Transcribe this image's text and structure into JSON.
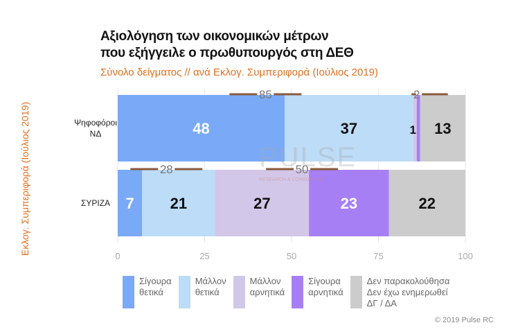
{
  "chart_data": {
    "type": "bar",
    "orientation": "horizontal",
    "stacked": true,
    "title": [
      "Αξιολόγηση των οικονομικών μέτρων",
      "που εξήγγειλε ο πρωθυπουργός στη ΔΕΘ"
    ],
    "subtitle": "Σύνολο δείγματος // ανά Εκλογ. Συμπεριφορά (Ιούλιος 2019)",
    "ylabel": "Εκλογ. Συμπεριφορά (Ιούλιος 2019)",
    "xlim": [
      0,
      100
    ],
    "xticks": [
      0,
      25,
      50,
      75,
      100
    ],
    "categories": [
      "Ψηφοφόροι\nΝΔ",
      "ΣΥΡΙΖΑ"
    ],
    "series": [
      {
        "name": "Σίγουρα θετικά",
        "color": "#7aa9f7",
        "label_color": "#ffffff",
        "values": [
          48,
          7
        ]
      },
      {
        "name": "Μάλλον θετικά",
        "color": "#bcdcf7",
        "label_color": "#111111",
        "values": [
          37,
          21
        ]
      },
      {
        "name": "Μάλλον αρνητικά",
        "color": "#d2c7e8",
        "label_color": "#111111",
        "values": [
          1,
          27
        ]
      },
      {
        "name": "Σίγουρα αρνητικά",
        "color": "#a77ff5",
        "label_color": "#ffffff",
        "values": [
          1,
          23
        ]
      },
      {
        "name": "Δεν παρακολούθησα Δεν έχω ενημερωθεί ΔΓ / ΔΑ",
        "color": "#cccccc",
        "label_color": "#111111",
        "values": [
          13,
          22
        ]
      }
    ],
    "legend_lines": [
      [
        "Σίγουρα",
        "θετικά"
      ],
      [
        "Μάλλον",
        "θετικά"
      ],
      [
        "Μάλλον",
        "αρνητικά"
      ],
      [
        "Σίγουρα",
        "αρνητικά"
      ],
      [
        "Δεν παρακολούθησα",
        "Δεν έχω ενημερωθεί",
        "ΔΓ / ΔΑ"
      ]
    ],
    "annotations": [
      {
        "row": 0,
        "from": 0,
        "to": 85,
        "text": "85"
      },
      {
        "row": 0,
        "from": 85,
        "to": 87,
        "text": "2"
      },
      {
        "row": 1,
        "from": 0,
        "to": 28,
        "text": "28"
      },
      {
        "row": 1,
        "from": 28,
        "to": 78,
        "text": "50"
      }
    ],
    "legend_position": "bottom"
  },
  "watermark": {
    "main": "PULSE",
    "sub": "RESEARCH & CONSULTING"
  },
  "copyright": "© 2019 Pulse RC"
}
